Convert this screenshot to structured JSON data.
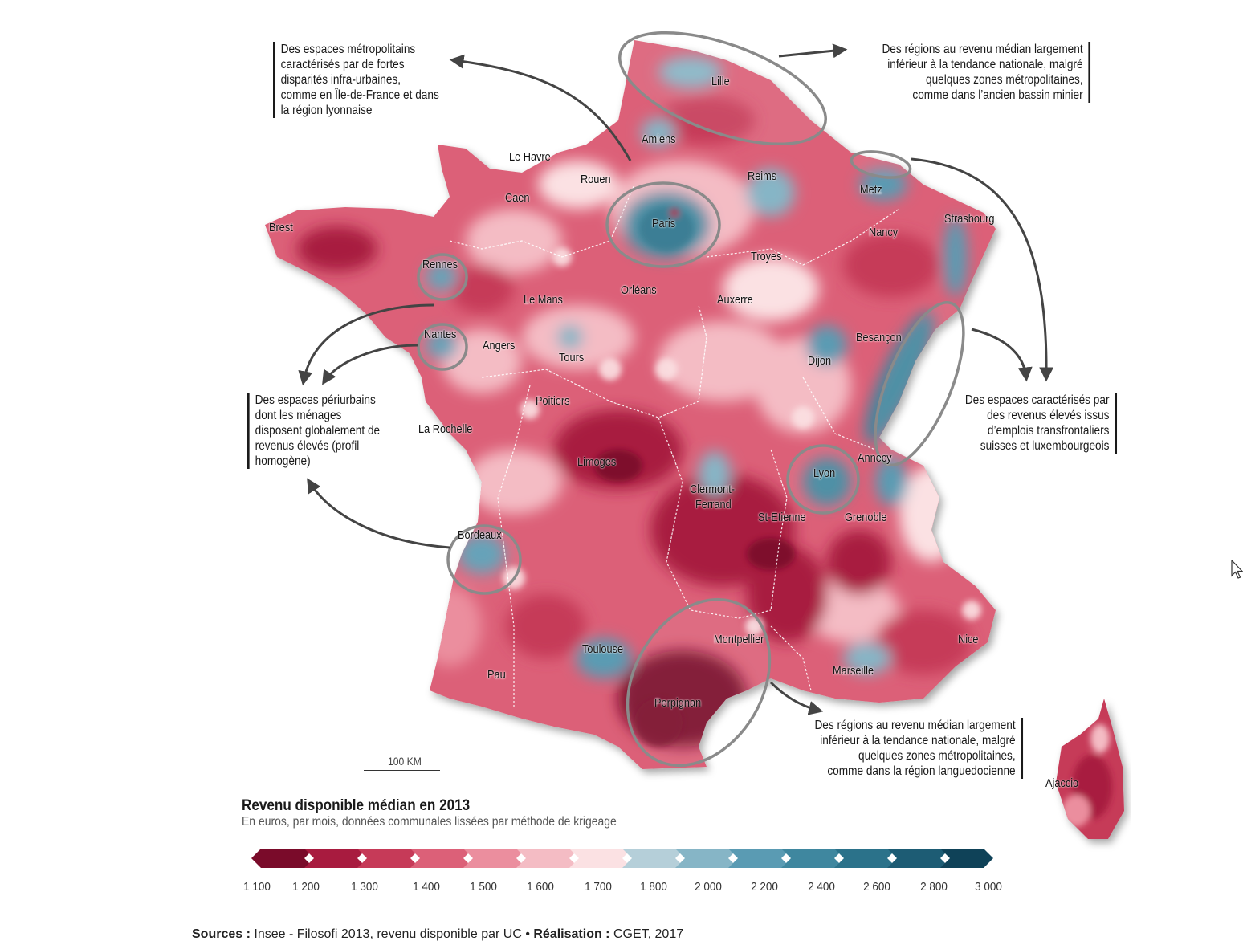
{
  "legend": {
    "title": "Revenu disponible médian en 2013",
    "subtitle": "En euros, par mois, données communales lissées par méthode de krigeage",
    "ticks": [
      "1 100",
      "1 200",
      "1 300",
      "1 400",
      "1 500",
      "1 600",
      "1 700",
      "1 800",
      "2 000",
      "2 200",
      "2 400",
      "2 600",
      "2 800",
      "3 000"
    ],
    "colors": [
      "#7a0b2a",
      "#a81b3f",
      "#c63a58",
      "#dc6078",
      "#eb8e9e",
      "#f4bcc4",
      "#fbe1e3",
      "#b5cfd9",
      "#86b5c6",
      "#5a9bb3",
      "#3f879f",
      "#2b728a",
      "#1d5c74",
      "#0f4258"
    ]
  },
  "callouts": {
    "metro": [
      "Des espaces métropolitains",
      "caractérisés par de fortes",
      "disparités infra-urbaines,",
      "comme en Île-de-France et dans",
      "la région lyonnaise"
    ],
    "north": [
      "Des régions au revenu médian largement",
      "inférieur à la tendance nationale, malgré",
      "quelques zones métropolitaines,",
      "comme dans l’ancien bassin minier"
    ],
    "periurban": [
      "Des espaces périurbains",
      "dont les ménages",
      "disposent globalement de",
      "revenus élevés (profil",
      "homogène)"
    ],
    "border": [
      "Des espaces caractérisés par",
      "des revenus élevés issus",
      "d’emplois transfrontaliers",
      "suisses et luxembourgeois"
    ],
    "south": [
      "Des régions au revenu médian largement",
      "inférieur à la tendance nationale, malgré",
      "quelques zones métropolitaines,",
      "comme dans la région languedocienne"
    ]
  },
  "cities": {
    "lille": "Lille",
    "amiens": "Amiens",
    "le_havre": "Le Havre",
    "rouen": "Rouen",
    "caen": "Caen",
    "reims": "Reims",
    "metz": "Metz",
    "strasbourg": "Strasbourg",
    "nancy": "Nancy",
    "brest": "Brest",
    "rennes": "Rennes",
    "paris": "Paris",
    "troyes": "Troyes",
    "le_mans": "Le Mans",
    "orleans": "Orléans",
    "auxerre": "Auxerre",
    "nantes": "Nantes",
    "angers": "Angers",
    "tours": "Tours",
    "besancon": "Besançon",
    "dijon": "Dijon",
    "poitiers": "Poitiers",
    "la_rochelle": "La Rochelle",
    "annecy": "Annecy",
    "limoges": "Limoges",
    "lyon": "Lyon",
    "clermont": "Clermont-",
    "ferrand": "Ferrand",
    "st_etienne": "St-Etienne",
    "grenoble": "Grenoble",
    "bordeaux": "Bordeaux",
    "montpellier": "Montpellier",
    "nice": "Nice",
    "toulouse": "Toulouse",
    "marseille": "Marseille",
    "pau": "Pau",
    "perpignan": "Perpignan",
    "ajaccio": "Ajaccio"
  },
  "scale_bar": "100 KM",
  "sources": {
    "sources_label": "Sources :",
    "sources_text": " Insee - Filosofi 2013, revenu disponible par UC • ",
    "credit_label": "Réalisation :",
    "credit_text": " CGET, 2017"
  }
}
